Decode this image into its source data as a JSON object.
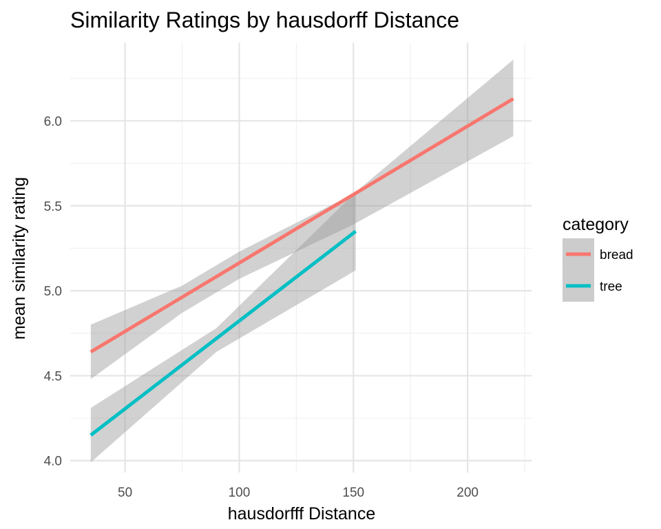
{
  "chart_data": {
    "type": "line",
    "title": "Similarity Ratings by hausdorff Distance",
    "xlabel": "hausdorfff Distance",
    "ylabel": "mean similarity rating",
    "xlim": [
      26,
      228
    ],
    "ylim": [
      3.93,
      6.46
    ],
    "x_ticks": [
      50,
      100,
      150,
      200
    ],
    "x_minor_ticks": [
      75,
      125,
      175,
      225
    ],
    "y_ticks": [
      4.0,
      4.5,
      5.0,
      5.5,
      6.0
    ],
    "y_tick_labels": [
      "4.0",
      "4.5",
      "5.0",
      "5.5",
      "6.0"
    ],
    "y_minor_ticks": [
      4.25,
      4.75,
      5.25,
      5.75,
      6.25
    ],
    "grid": true,
    "legend": {
      "title": "category",
      "position": "right"
    },
    "series": [
      {
        "name": "bread",
        "color": "#F8766D",
        "x": [
          35,
          220
        ],
        "y": [
          4.64,
          6.13
        ],
        "ribbon": {
          "x": [
            35,
            75,
            100,
            150,
            220
          ],
          "lower": [
            4.48,
            4.87,
            5.07,
            5.39,
            5.91
          ],
          "upper": [
            4.8,
            5.03,
            5.23,
            5.57,
            6.36
          ]
        }
      },
      {
        "name": "tree",
        "color": "#00BFC4",
        "x": [
          35,
          151
        ],
        "y": [
          4.15,
          5.35
        ],
        "ribbon": {
          "x": [
            35,
            90,
            151
          ],
          "lower": [
            3.99,
            4.64,
            5.12
          ],
          "upper": [
            4.31,
            4.78,
            5.58
          ]
        }
      }
    ]
  }
}
